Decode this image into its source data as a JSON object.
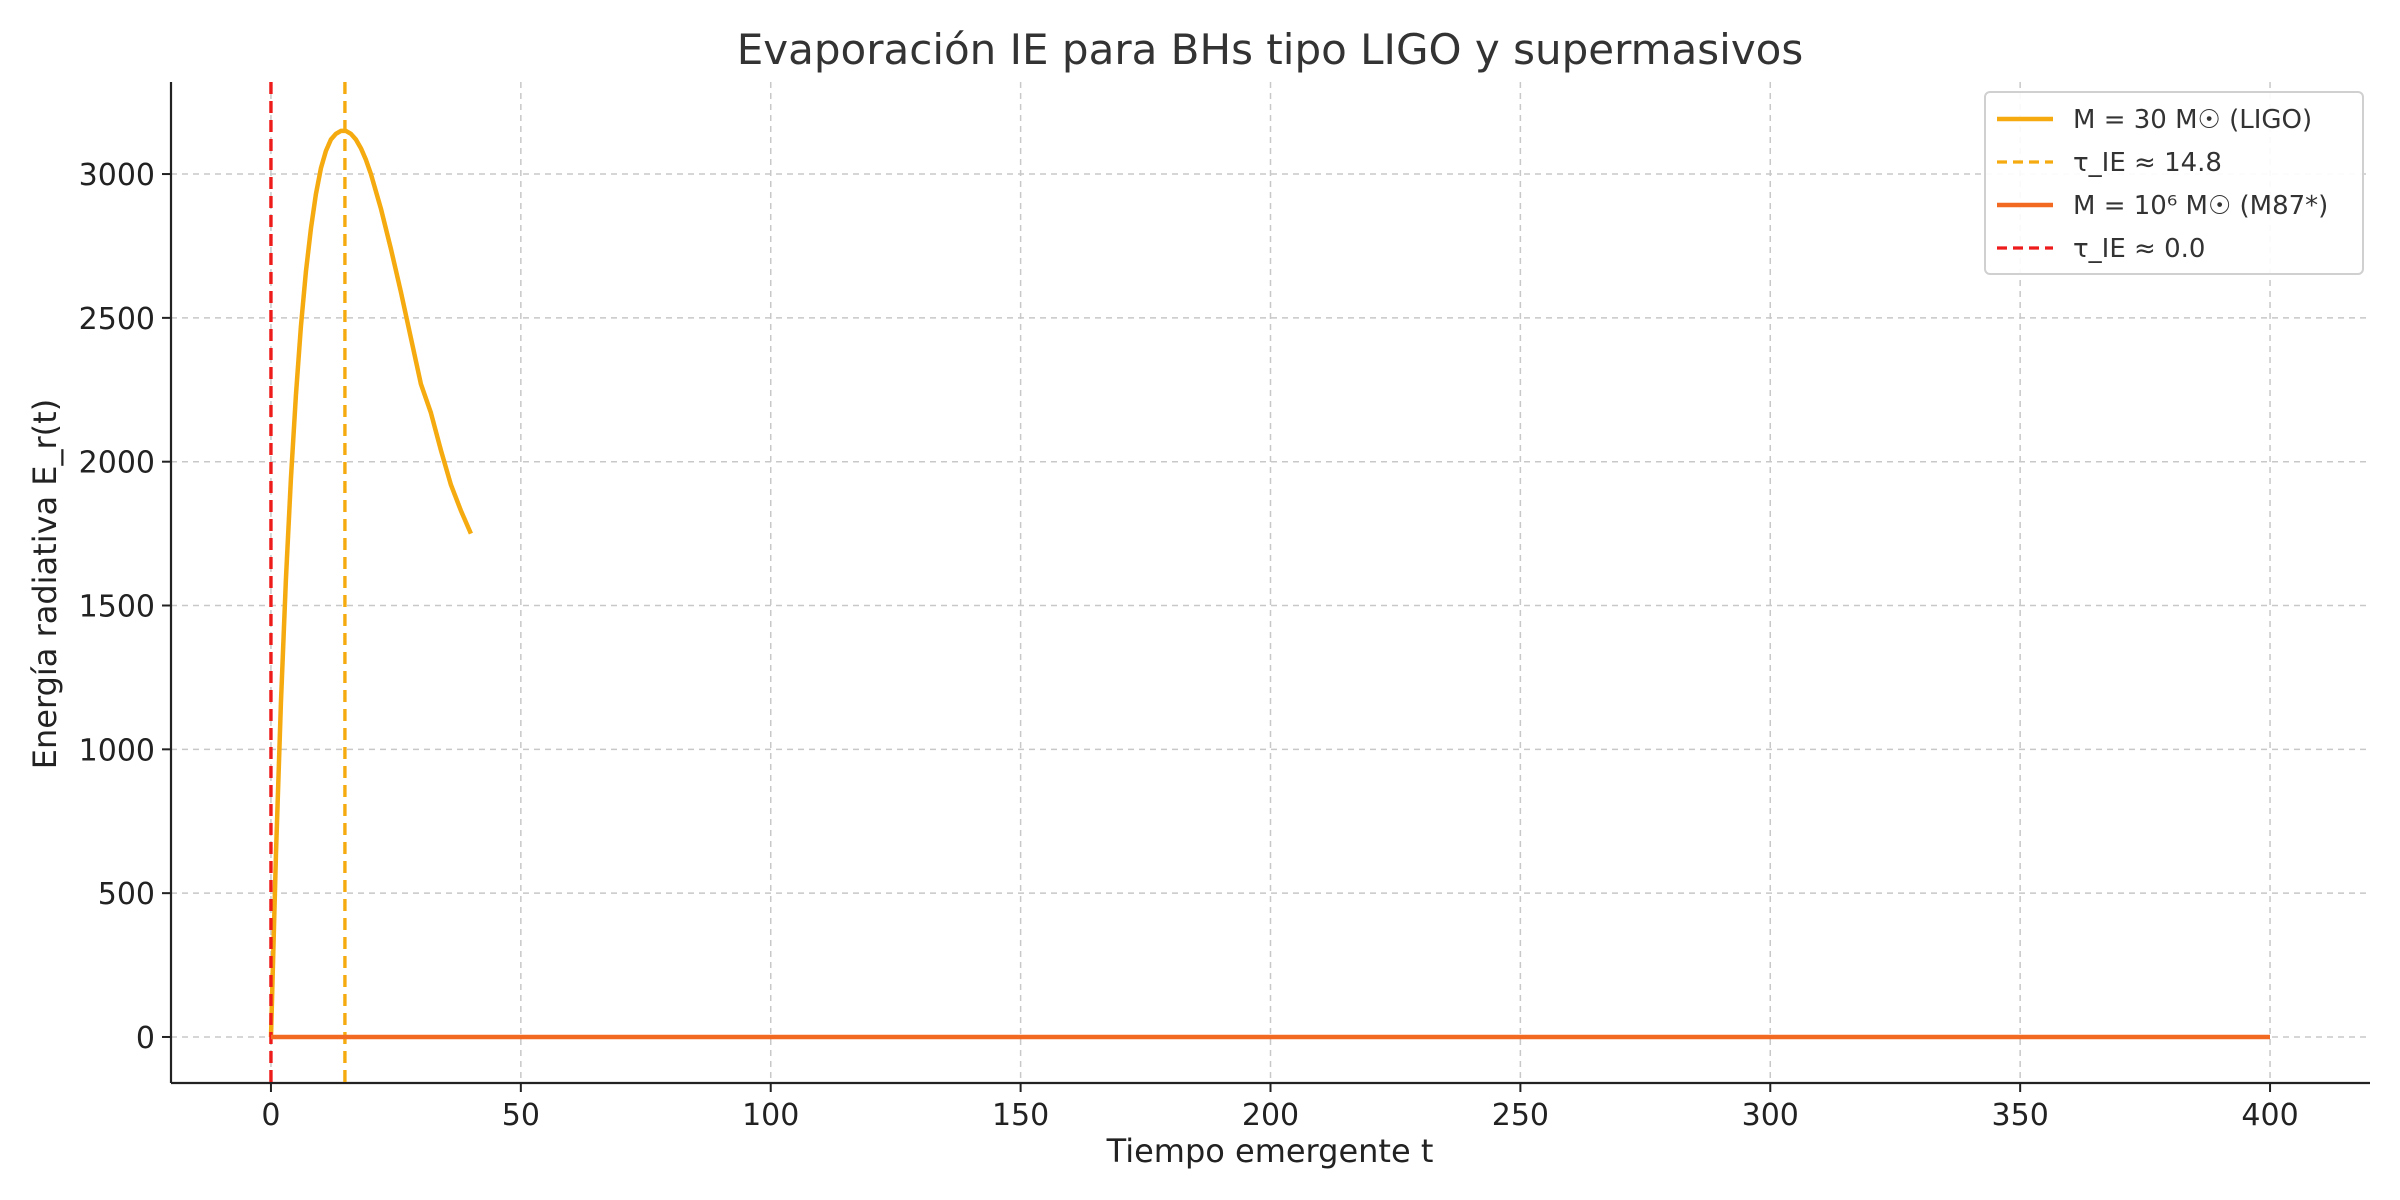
{
  "chart_data": {
    "type": "line",
    "title": "Evaporación IE para BHs tipo LIGO y supermasivos",
    "xlabel": "Tiempo emergente t",
    "ylabel": "Energía radiativa E_r(t)",
    "xlim": [
      -20,
      420
    ],
    "ylim": [
      -160,
      3320
    ],
    "xticks": [
      0,
      50,
      100,
      150,
      200,
      250,
      300,
      350,
      400
    ],
    "yticks": [
      0,
      500,
      1000,
      1500,
      2000,
      2500,
      3000
    ],
    "grid": true,
    "legend_position": "top-right",
    "series": [
      {
        "name": "M = 30 M☉ (LIGO)",
        "style": "solid",
        "color": "#f5ab0f",
        "x": [
          0,
          1,
          2,
          3,
          4,
          5,
          6,
          7,
          8,
          9,
          10,
          11,
          12,
          13,
          14,
          15,
          16,
          17,
          18,
          19,
          20,
          22,
          24,
          26,
          28,
          30,
          32,
          34,
          36,
          38,
          40
        ],
        "y": [
          0,
          640,
          1160,
          1590,
          1940,
          2230,
          2470,
          2660,
          2810,
          2930,
          3020,
          3080,
          3120,
          3140,
          3150,
          3150,
          3140,
          3120,
          3090,
          3050,
          3000,
          2880,
          2740,
          2590,
          2430,
          2270,
          2170,
          2040,
          1920,
          1830,
          1750
        ]
      },
      {
        "name": "τ_IE ≈ 14.8",
        "style": "dashed",
        "color": "#f5ab0f",
        "vline_x": 14.8
      },
      {
        "name": "M = 10⁶ M☉ (M87*)",
        "style": "solid",
        "color": "#f26a21",
        "x": [
          0,
          400
        ],
        "y": [
          0,
          0
        ]
      },
      {
        "name": "τ_IE ≈ 0.0",
        "style": "dashed",
        "color": "#ee1b1b",
        "vline_x": 0.0
      }
    ]
  }
}
